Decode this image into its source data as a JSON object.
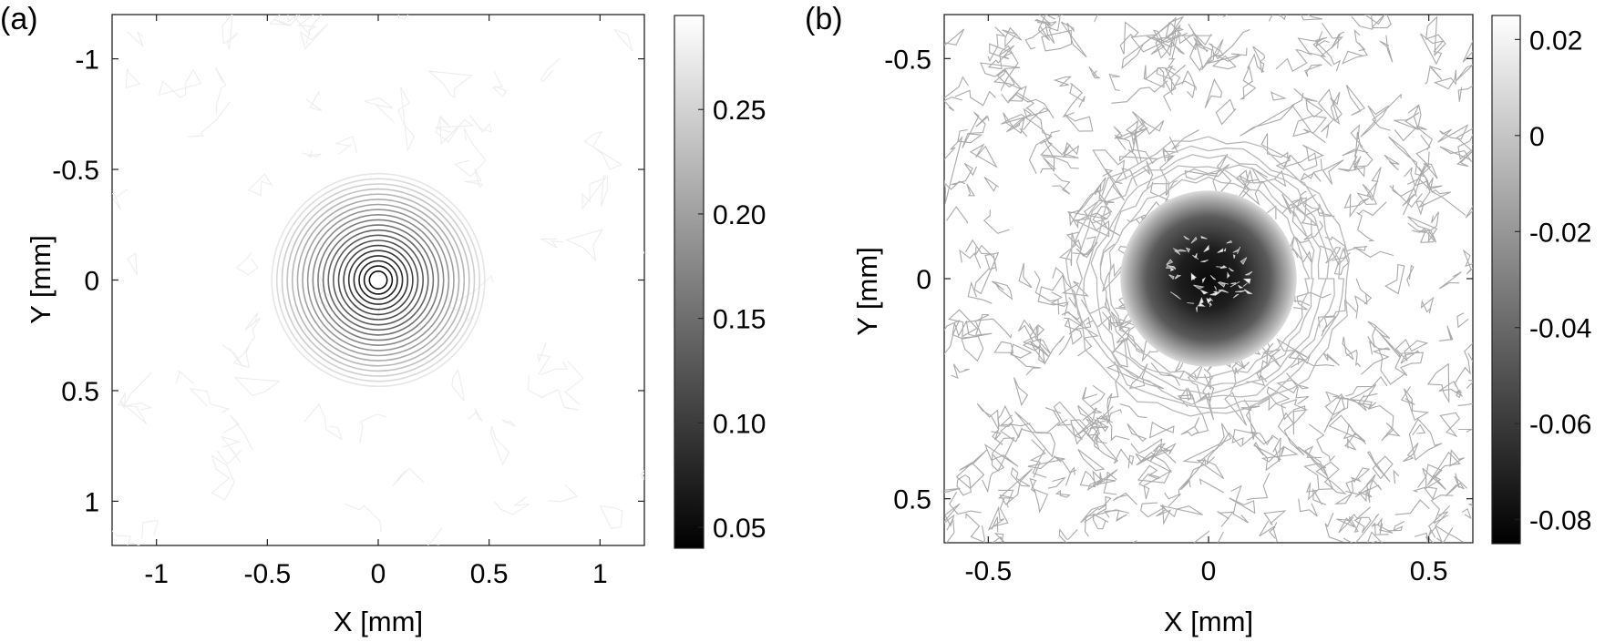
{
  "chart_data": [
    {
      "type": "contour",
      "panel_label": "(a)",
      "xlabel": "X [mm]",
      "ylabel": "Y [mm]",
      "xlim": [
        -1.2,
        1.2
      ],
      "ylim": [
        -1.2,
        1.2
      ],
      "y_reversed": true,
      "xticks": [
        -1,
        -0.5,
        0,
        0.5,
        1
      ],
      "xtick_labels": [
        "-1",
        "-0.5",
        "0",
        "0.5",
        "1"
      ],
      "yticks": [
        -1,
        -0.5,
        0,
        0.5,
        1
      ],
      "ytick_labels": [
        "-1",
        "-0.5",
        "0",
        "0.5",
        "1"
      ],
      "colorbar": {
        "colormap": "gray",
        "range": [
          0.04,
          0.295
        ],
        "ticks": [
          0.05,
          0.1,
          0.15,
          0.2,
          0.25
        ],
        "tick_labels": [
          "0.05",
          "0.10",
          "0.15",
          "0.20",
          "0.25"
        ]
      },
      "feature": {
        "shape": "concentric circular contours",
        "center": [
          0,
          0
        ],
        "inner_radius": 0.04,
        "outer_radius": 0.48,
        "ring_count": 20,
        "min_value": 0.05,
        "max_value": 0.29
      }
    },
    {
      "type": "contour",
      "panel_label": "(b)",
      "xlabel": "X [mm]",
      "ylabel": "Y [mm]",
      "xlim": [
        -0.6,
        0.6
      ],
      "ylim": [
        -0.6,
        0.6
      ],
      "y_reversed": true,
      "xticks": [
        -0.5,
        0,
        0.5
      ],
      "xtick_labels": [
        "-0.5",
        "0",
        "0.5"
      ],
      "yticks": [
        -0.5,
        0,
        0.5
      ],
      "ytick_labels": [
        "-0.5",
        "0",
        "0.5"
      ],
      "colorbar": {
        "colormap": "gray",
        "range": [
          -0.085,
          0.025
        ],
        "ticks": [
          -0.08,
          -0.06,
          -0.04,
          -0.02,
          0,
          0.02
        ],
        "tick_labels": [
          "-0.08",
          "-0.06",
          "-0.04",
          "-0.02",
          "0",
          "0.02"
        ]
      },
      "feature": {
        "shape": "dark filled disk with noisy contour background",
        "center": [
          0,
          0
        ],
        "radius": 0.2,
        "min_value": -0.08,
        "background_value": 0.02
      }
    }
  ]
}
